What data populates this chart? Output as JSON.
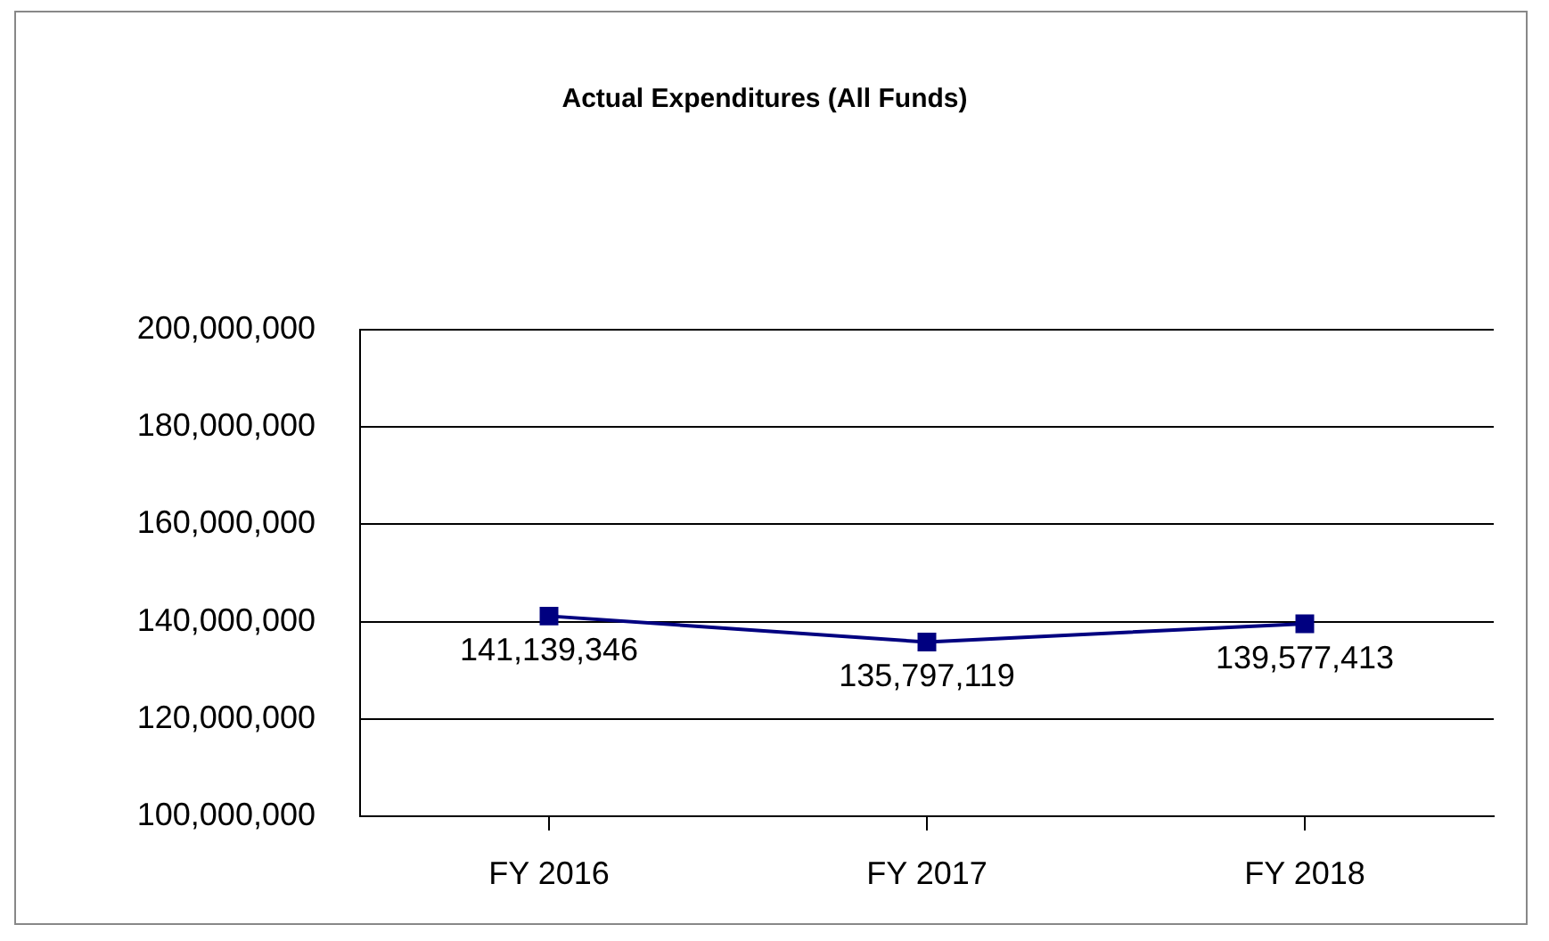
{
  "chart_data": {
    "type": "line",
    "title": "Actual Expenditures (All Funds)",
    "categories": [
      "FY 2016",
      "FY 2017",
      "FY 2018"
    ],
    "series": [
      {
        "color": "#000080",
        "values": [
          141139346,
          135797119,
          139577413
        ],
        "value_labels": [
          "141,139,346",
          "135,797,119",
          "139,577,413"
        ]
      }
    ],
    "ylim": [
      100000000,
      200000000
    ],
    "yticks": [
      {
        "value": 100000000,
        "label": "100,000,000"
      },
      {
        "value": 120000000,
        "label": "120,000,000"
      },
      {
        "value": 140000000,
        "label": "140,000,000"
      },
      {
        "value": 160000000,
        "label": "160,000,000"
      },
      {
        "value": 180000000,
        "label": "180,000,000"
      },
      {
        "value": 200000000,
        "label": "200,000,000"
      }
    ],
    "grid": "y",
    "legend": false,
    "marker": "square",
    "line_style": "solid"
  }
}
